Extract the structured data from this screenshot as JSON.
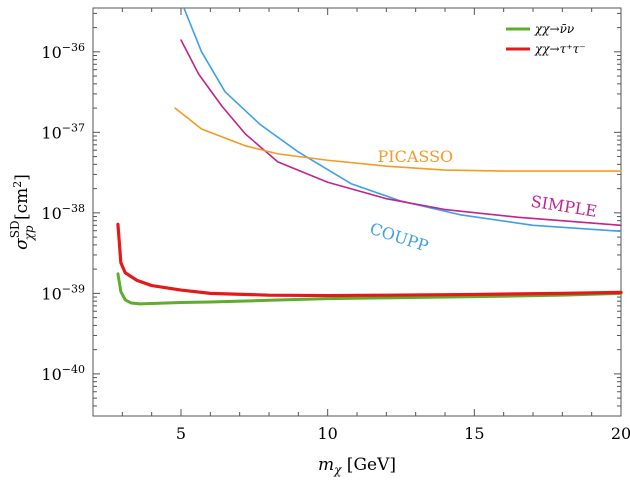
{
  "chart_data": {
    "type": "line",
    "title": "",
    "xlabel": "m_χ [GeV]",
    "ylabel": "σ^SD_χp [cm²]",
    "xscale": "linear",
    "yscale": "log",
    "xlim": [
      2,
      20
    ],
    "ylim": [
      3e-41,
      3.5e-36
    ],
    "xticks": [
      5,
      10,
      15,
      20
    ],
    "xtick_labels": [
      "5",
      "10",
      "15",
      "20"
    ],
    "yticks": [
      1e-40,
      1e-39,
      1e-38,
      1e-37,
      1e-36
    ],
    "ytick_labels": [
      {
        "base": "10",
        "exp": "−40"
      },
      {
        "base": "10",
        "exp": "−39"
      },
      {
        "base": "10",
        "exp": "−38"
      },
      {
        "base": "10",
        "exp": "−37"
      },
      {
        "base": "10",
        "exp": "−36"
      }
    ],
    "legend": {
      "position": "top-right",
      "entries": [
        {
          "series": "nunu",
          "label": "χχ→ν̄ν"
        },
        {
          "series": "tautau",
          "label": "χχ→τ⁺τ⁻"
        }
      ]
    },
    "series": [
      {
        "id": "couPP",
        "name": "COUPP",
        "color": "#3f9fea",
        "width": 1.6,
        "x": [
          5.1,
          5.7,
          6.5,
          7.7,
          9.0,
          10.8,
          12.5,
          14.5,
          17.0,
          20.0
        ],
        "y": [
          3.5e-36,
          1e-36,
          3.2e-37,
          1.25e-37,
          5.7e-38,
          2.3e-38,
          1.4e-38,
          9.5e-39,
          7e-39,
          5.9e-39
        ]
      },
      {
        "id": "simple",
        "name": "SIMPLE",
        "color": "#c0248e",
        "width": 1.6,
        "x": [
          5.0,
          5.6,
          6.4,
          7.2,
          8.3,
          10.0,
          12.0,
          14.0,
          16.5,
          20.0
        ],
        "y": [
          1.4e-36,
          5.3e-37,
          2.1e-37,
          9.5e-38,
          4.3e-38,
          2.4e-38,
          1.5e-38,
          1.1e-38,
          8.8e-39,
          7e-39
        ]
      },
      {
        "id": "picasso",
        "name": "PICASSO",
        "color": "#f59a23",
        "width": 1.6,
        "x": [
          4.8,
          5.7,
          7.2,
          8.3,
          10.0,
          12.0,
          14.0,
          16.0,
          18.0,
          20.0
        ],
        "y": [
          2e-37,
          1.1e-37,
          6.8e-38,
          5.4e-38,
          4.5e-38,
          3.8e-38,
          3.4e-38,
          3.3e-38,
          3.3e-38,
          3.3e-38
        ]
      },
      {
        "id": "nunu",
        "name": "χχ→ν̄ν",
        "color": "#5fad2c",
        "width": 3,
        "x": [
          2.85,
          2.95,
          3.1,
          3.3,
          3.6,
          4.0,
          5.0,
          6.0,
          8.0,
          10.0,
          12.0,
          15.0,
          18.0,
          20.0
        ],
        "y": [
          1.75e-39,
          1.05e-39,
          8.3e-40,
          7.6e-40,
          7.4e-40,
          7.5e-40,
          7.7e-40,
          7.8e-40,
          8.2e-40,
          8.6e-40,
          8.8e-40,
          9.1e-40,
          9.5e-40,
          1e-39
        ]
      },
      {
        "id": "tautau",
        "name": "χχ→τ⁺τ⁻",
        "color": "#e41a1a",
        "width": 3.2,
        "x": [
          2.85,
          2.95,
          3.1,
          3.5,
          4.0,
          5.0,
          6.0,
          8.0,
          10.0,
          12.0,
          15.0,
          18.0,
          20.0
        ],
        "y": [
          7.2e-39,
          2.4e-39,
          1.8e-39,
          1.45e-39,
          1.25e-39,
          1.1e-39,
          1e-39,
          9.5e-40,
          9.4e-40,
          9.5e-40,
          9.7e-40,
          1e-39,
          1.03e-39
        ]
      }
    ],
    "annotations": [
      {
        "text": "PICASSO",
        "color": "#f59a23",
        "x": 11.7,
        "y": 4.3e-38,
        "rotate": 0
      },
      {
        "text": "SIMPLE",
        "color": "#c0248e",
        "x": 16.9,
        "y": 1.2e-38,
        "rotate": 9
      },
      {
        "text": "COUPP",
        "color": "#3f9fea",
        "x": 11.4,
        "y": 5.6e-39,
        "rotate": 18
      }
    ]
  }
}
